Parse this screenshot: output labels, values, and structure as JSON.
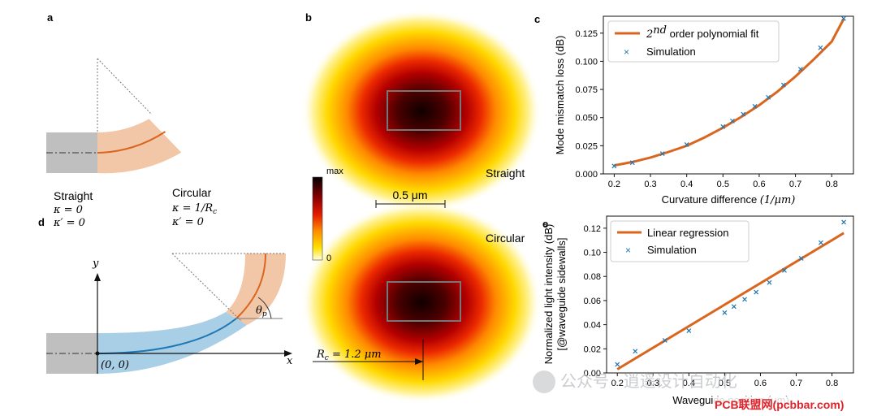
{
  "colors": {
    "waveguide_gray": "#bfbfbf",
    "straight_blue": "#a9cfe6",
    "bend_orange": "#f2c7a8",
    "center_blue": "#1f77b4",
    "center_orange": "#d9651e",
    "fit_line": "#d9651e",
    "sim_marker": "#1f77b4"
  },
  "panels": {
    "a": {
      "label": "a",
      "straight": {
        "name": "Straight",
        "kappa": "κ = 0",
        "kappa_prime": "κ′ = 0"
      },
      "circular": {
        "name": "Circular",
        "kappa": "κ = 1/R",
        "kappa_sub": "c",
        "kappa_prime": "κ′ = 0"
      }
    },
    "d": {
      "label": "d",
      "y_axis": "y",
      "x_axis": "x",
      "origin": "(0, 0)",
      "theta": "θ",
      "theta_sub": "p"
    },
    "b": {
      "label": "b",
      "colorbar": {
        "max": "max",
        "min": "0"
      },
      "scale_bar": "0.5 μm",
      "straight_label": "Straight",
      "circular_label": "Circular",
      "radius": "R",
      "radius_sub": "c",
      "radius_value": " = 1.2 μm"
    }
  },
  "chart_data": [
    {
      "panel": "c",
      "type": "scatter",
      "xlabel": "Curvature difference",
      "xlabel_unit": "(1/μm)",
      "ylabel": "Mode mismatch loss (dB)",
      "xlim": [
        0.17,
        0.86
      ],
      "ylim": [
        0.0,
        0.14
      ],
      "xticks": [
        0.2,
        0.3,
        0.4,
        0.5,
        0.6,
        0.7,
        0.8
      ],
      "yticks": [
        0.0,
        0.025,
        0.05,
        0.075,
        0.1,
        0.125
      ],
      "xtick_labels": [
        "0.2",
        "0.3",
        "0.4",
        "0.5",
        "0.6",
        "0.7",
        "0.8"
      ],
      "ytick_labels": [
        "0.000",
        "0.025",
        "0.050",
        "0.075",
        "0.100",
        "0.125"
      ],
      "legend_loc": "top-left",
      "series": [
        {
          "name": "2nd order polynomial fit",
          "legend_prefix": "2",
          "legend_sup": "nd",
          "legend_suffix": " order polynomial fit",
          "kind": "line",
          "x": [
            0.2,
            0.25,
            0.3,
            0.35,
            0.4,
            0.45,
            0.5,
            0.55,
            0.6,
            0.65,
            0.7,
            0.75,
            0.8,
            0.833
          ],
          "y": [
            0.0075,
            0.0105,
            0.0145,
            0.0195,
            0.025,
            0.0325,
            0.041,
            0.0505,
            0.061,
            0.073,
            0.0865,
            0.1015,
            0.1175,
            0.1375
          ]
        },
        {
          "name": "Simulation",
          "kind": "marker",
          "x": [
            0.2,
            0.25,
            0.333,
            0.4,
            0.5,
            0.526,
            0.556,
            0.588,
            0.625,
            0.667,
            0.714,
            0.769,
            0.833
          ],
          "y": [
            0.007,
            0.01,
            0.018,
            0.026,
            0.042,
            0.047,
            0.053,
            0.06,
            0.068,
            0.079,
            0.093,
            0.112,
            0.138
          ]
        }
      ]
    },
    {
      "panel": "e",
      "type": "scatter",
      "xlabel": "Waveguide position (μm)",
      "ylabel": "Normalized light intensity (dB)",
      "ylabel2": "[@waveguide sidewalls]",
      "xlim": [
        0.17,
        0.86
      ],
      "ylim": [
        0.0,
        0.13
      ],
      "xticks": [
        0.2,
        0.3,
        0.4,
        0.5,
        0.6,
        0.7,
        0.8
      ],
      "yticks": [
        0.0,
        0.02,
        0.04,
        0.06,
        0.08,
        0.1,
        0.12
      ],
      "xtick_labels": [
        "0.2",
        "0.3",
        "0.4",
        "0.5",
        "0.6",
        "0.7",
        "0.8"
      ],
      "ytick_labels": [
        "0.00",
        "0.02",
        "0.04",
        "0.06",
        "0.08",
        "0.10",
        "0.12"
      ],
      "legend_loc": "top-left",
      "series": [
        {
          "name": "Linear regression",
          "kind": "line",
          "x": [
            0.2,
            0.833
          ],
          "y": [
            0.003,
            0.116
          ]
        },
        {
          "name": "Simulation",
          "kind": "marker",
          "x": [
            0.2,
            0.25,
            0.333,
            0.4,
            0.5,
            0.526,
            0.556,
            0.588,
            0.625,
            0.667,
            0.714,
            0.769,
            0.833
          ],
          "y": [
            0.007,
            0.018,
            0.027,
            0.035,
            0.05,
            0.055,
            0.061,
            0.067,
            0.075,
            0.085,
            0.095,
            0.108,
            0.125
          ]
        }
      ]
    }
  ],
  "watermark": {
    "text": "公众号 · 逍遥设计自动化",
    "site": "PCB联盟网(pcbbar.com)"
  }
}
